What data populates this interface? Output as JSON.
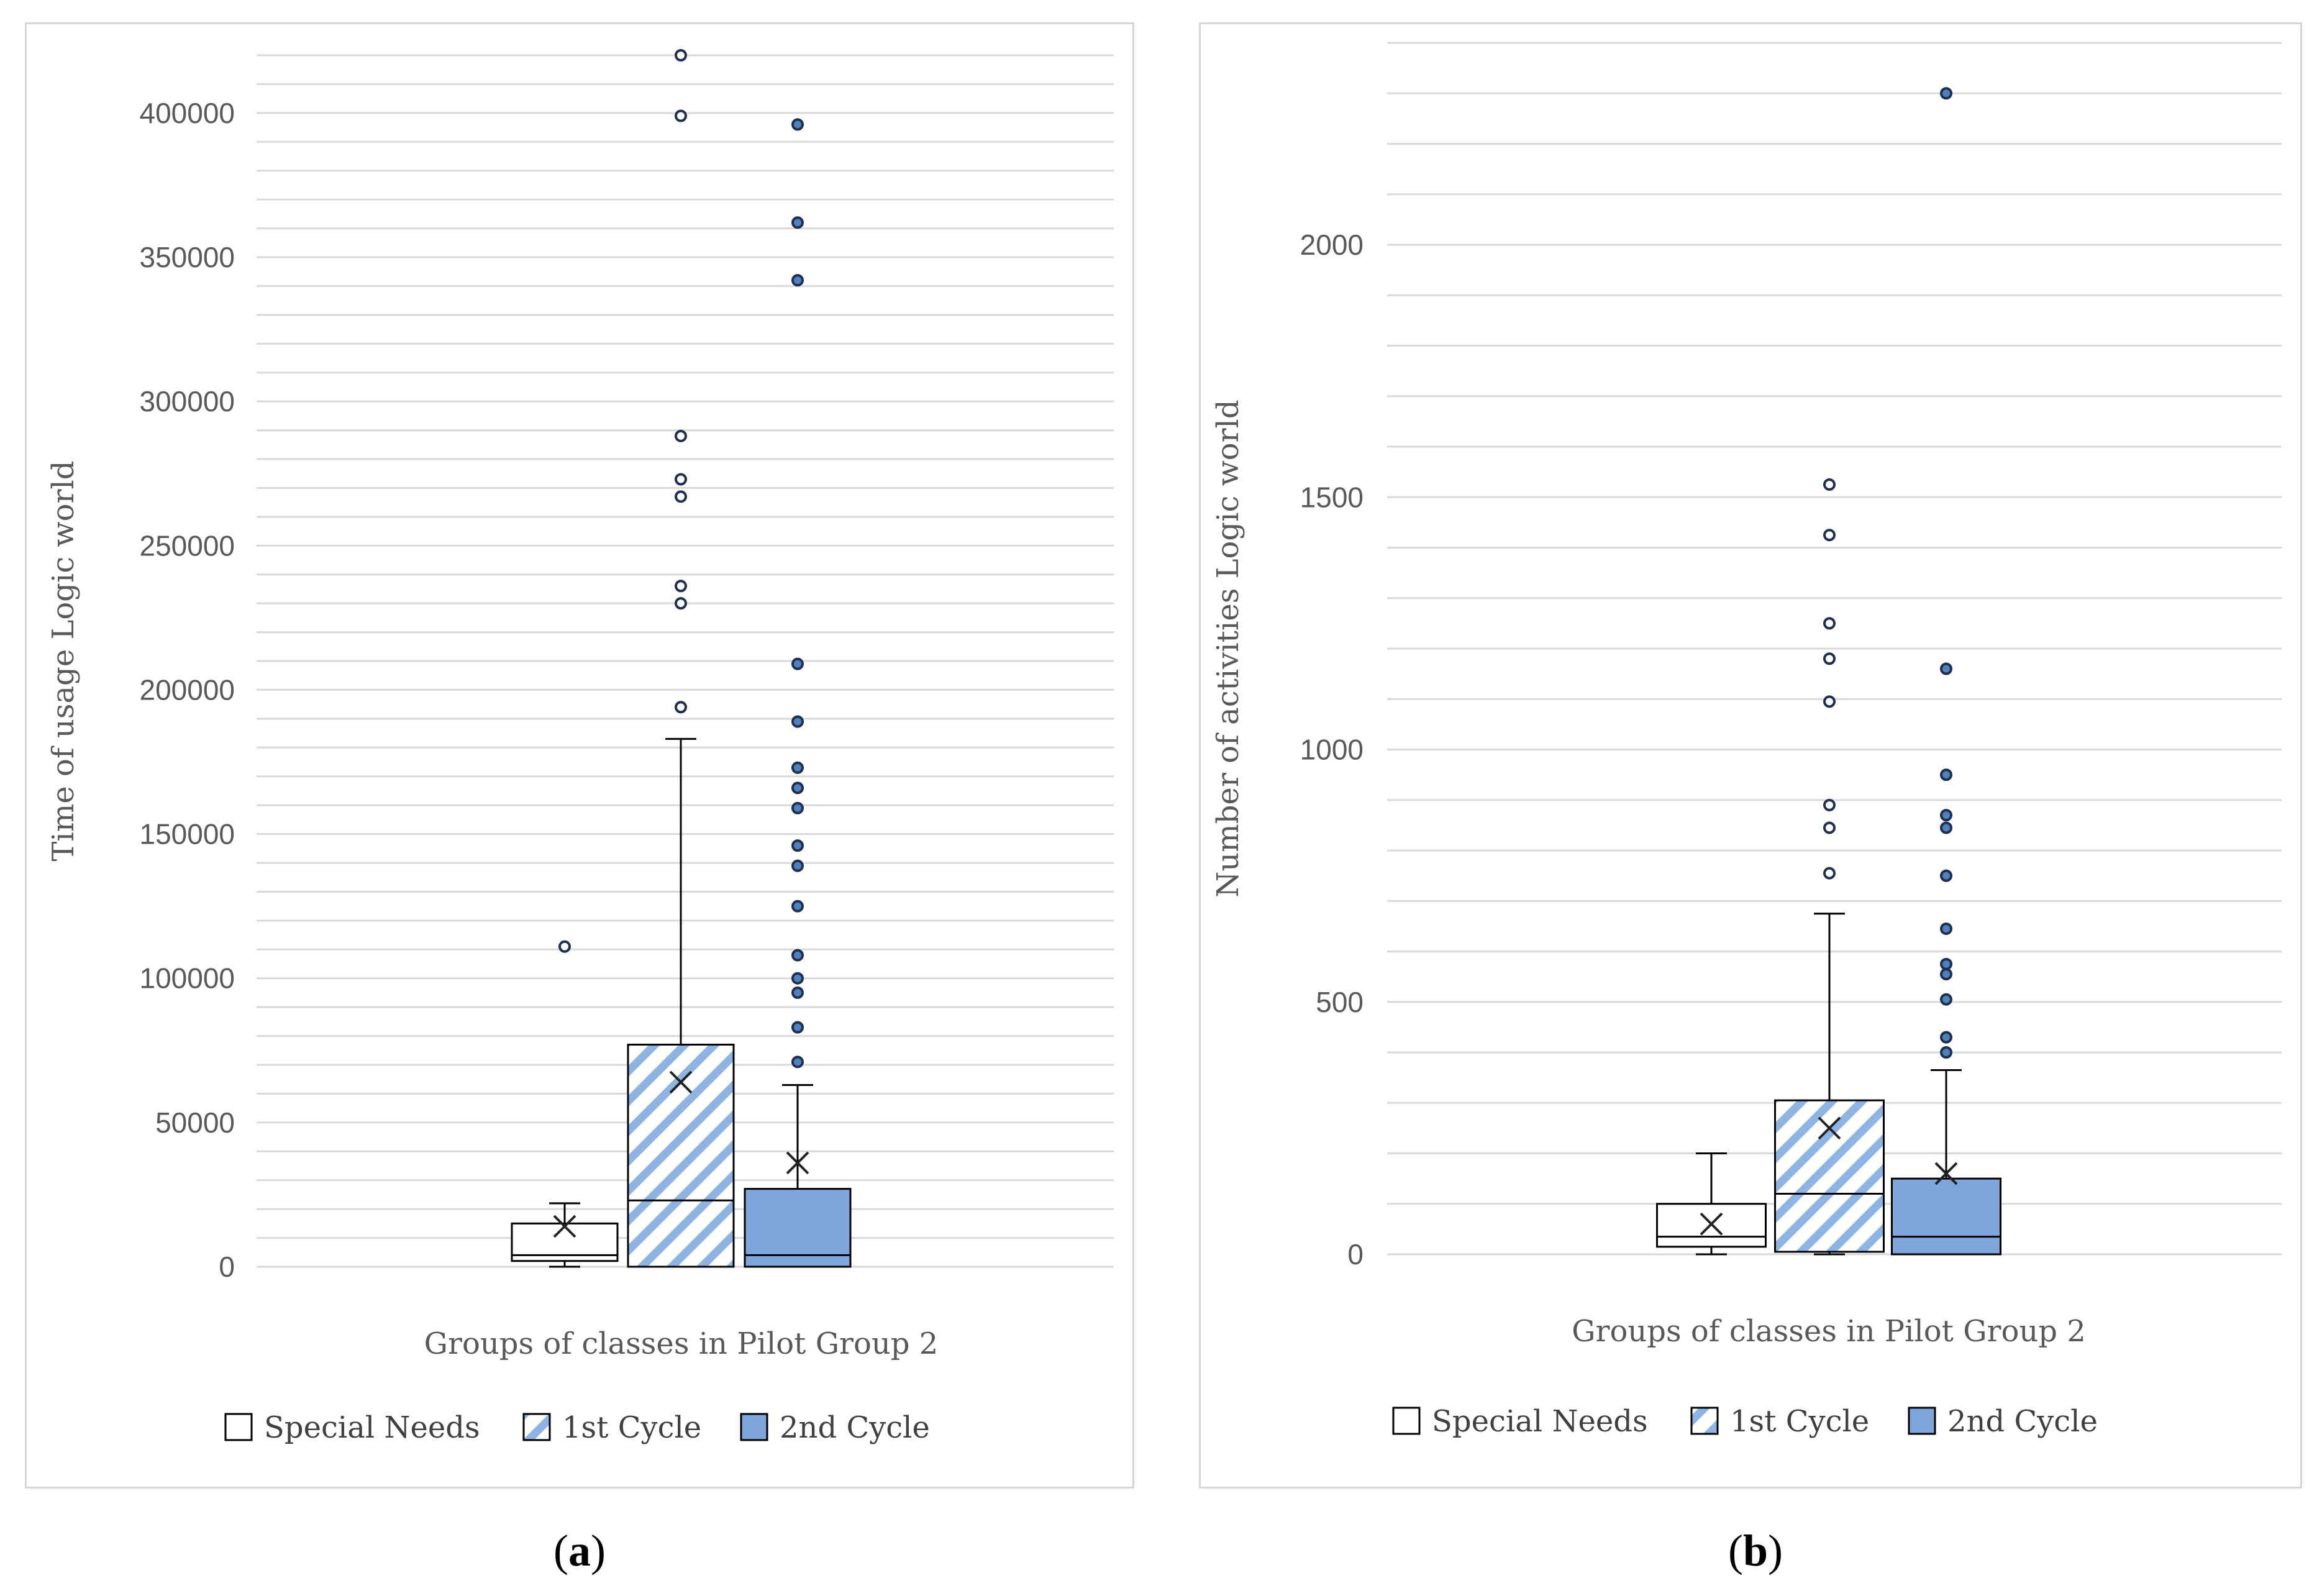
{
  "chart_data": [
    {
      "type": "boxplot",
      "panel_label": "a",
      "title": "",
      "xlabel": "Groups of classes in Pilot Group 2",
      "ylabel": "Time of usage Logic world",
      "ylim": [
        0,
        420000
      ],
      "yticks": [
        0,
        50000,
        100000,
        150000,
        200000,
        250000,
        300000,
        350000,
        400000
      ],
      "grid": true,
      "legend_position": "bottom",
      "series": [
        {
          "name": "Special Needs",
          "fill": "#ffffff",
          "pattern": "none",
          "min": 0,
          "q1": 2000,
          "median": 4000,
          "q3": 15000,
          "max": 22000,
          "mean": 14000,
          "outliers": [
            111000
          ]
        },
        {
          "name": "1st Cycle",
          "fill": "#ffffff",
          "pattern": "diagonal-stripes",
          "stripe_color": "#8db4e2",
          "min": 0,
          "q1": 0,
          "median": 23000,
          "q3": 77000,
          "max": 183000,
          "mean": 64000,
          "outliers": [
            194000,
            230000,
            236000,
            267000,
            273000,
            288000,
            399000,
            420000
          ]
        },
        {
          "name": "2nd Cycle",
          "fill": "#7ea6dd",
          "pattern": "solid",
          "min": 0,
          "q1": 0,
          "median": 4000,
          "q3": 27000,
          "max": 63000,
          "mean": 36000,
          "outliers": [
            71000,
            83000,
            95000,
            100000,
            108000,
            125000,
            139000,
            146000,
            159000,
            166000,
            173000,
            189000,
            209000,
            342000,
            362000,
            396000
          ]
        }
      ]
    },
    {
      "type": "boxplot",
      "panel_label": "b",
      "title": "",
      "xlabel": "Groups of classes in Pilot Group 2",
      "ylabel": "Number of activities Logic world",
      "ylim": [
        0,
        2400
      ],
      "yticks": [
        0,
        500,
        1000,
        1500,
        2000
      ],
      "grid": true,
      "legend_position": "bottom",
      "series": [
        {
          "name": "Special Needs",
          "fill": "#ffffff",
          "pattern": "none",
          "min": 0,
          "q1": 15,
          "median": 35,
          "q3": 100,
          "max": 200,
          "mean": 60,
          "outliers": []
        },
        {
          "name": "1st Cycle",
          "fill": "#ffffff",
          "pattern": "diagonal-stripes",
          "stripe_color": "#8db4e2",
          "min": 0,
          "q1": 5,
          "median": 120,
          "q3": 305,
          "max": 675,
          "mean": 250,
          "outliers": [
            755,
            845,
            890,
            1095,
            1180,
            1250,
            1425,
            1525
          ]
        },
        {
          "name": "2nd Cycle",
          "fill": "#7ea6dd",
          "pattern": "solid",
          "min": 0,
          "q1": 0,
          "median": 35,
          "q3": 150,
          "max": 365,
          "mean": 160,
          "outliers": [
            400,
            430,
            505,
            555,
            575,
            645,
            750,
            845,
            870,
            950,
            1160,
            2300
          ]
        }
      ]
    }
  ],
  "legend": {
    "items": [
      "Special Needs",
      "1st Cycle",
      "2nd Cycle"
    ]
  },
  "captions": {
    "a": "a",
    "b": "b"
  }
}
